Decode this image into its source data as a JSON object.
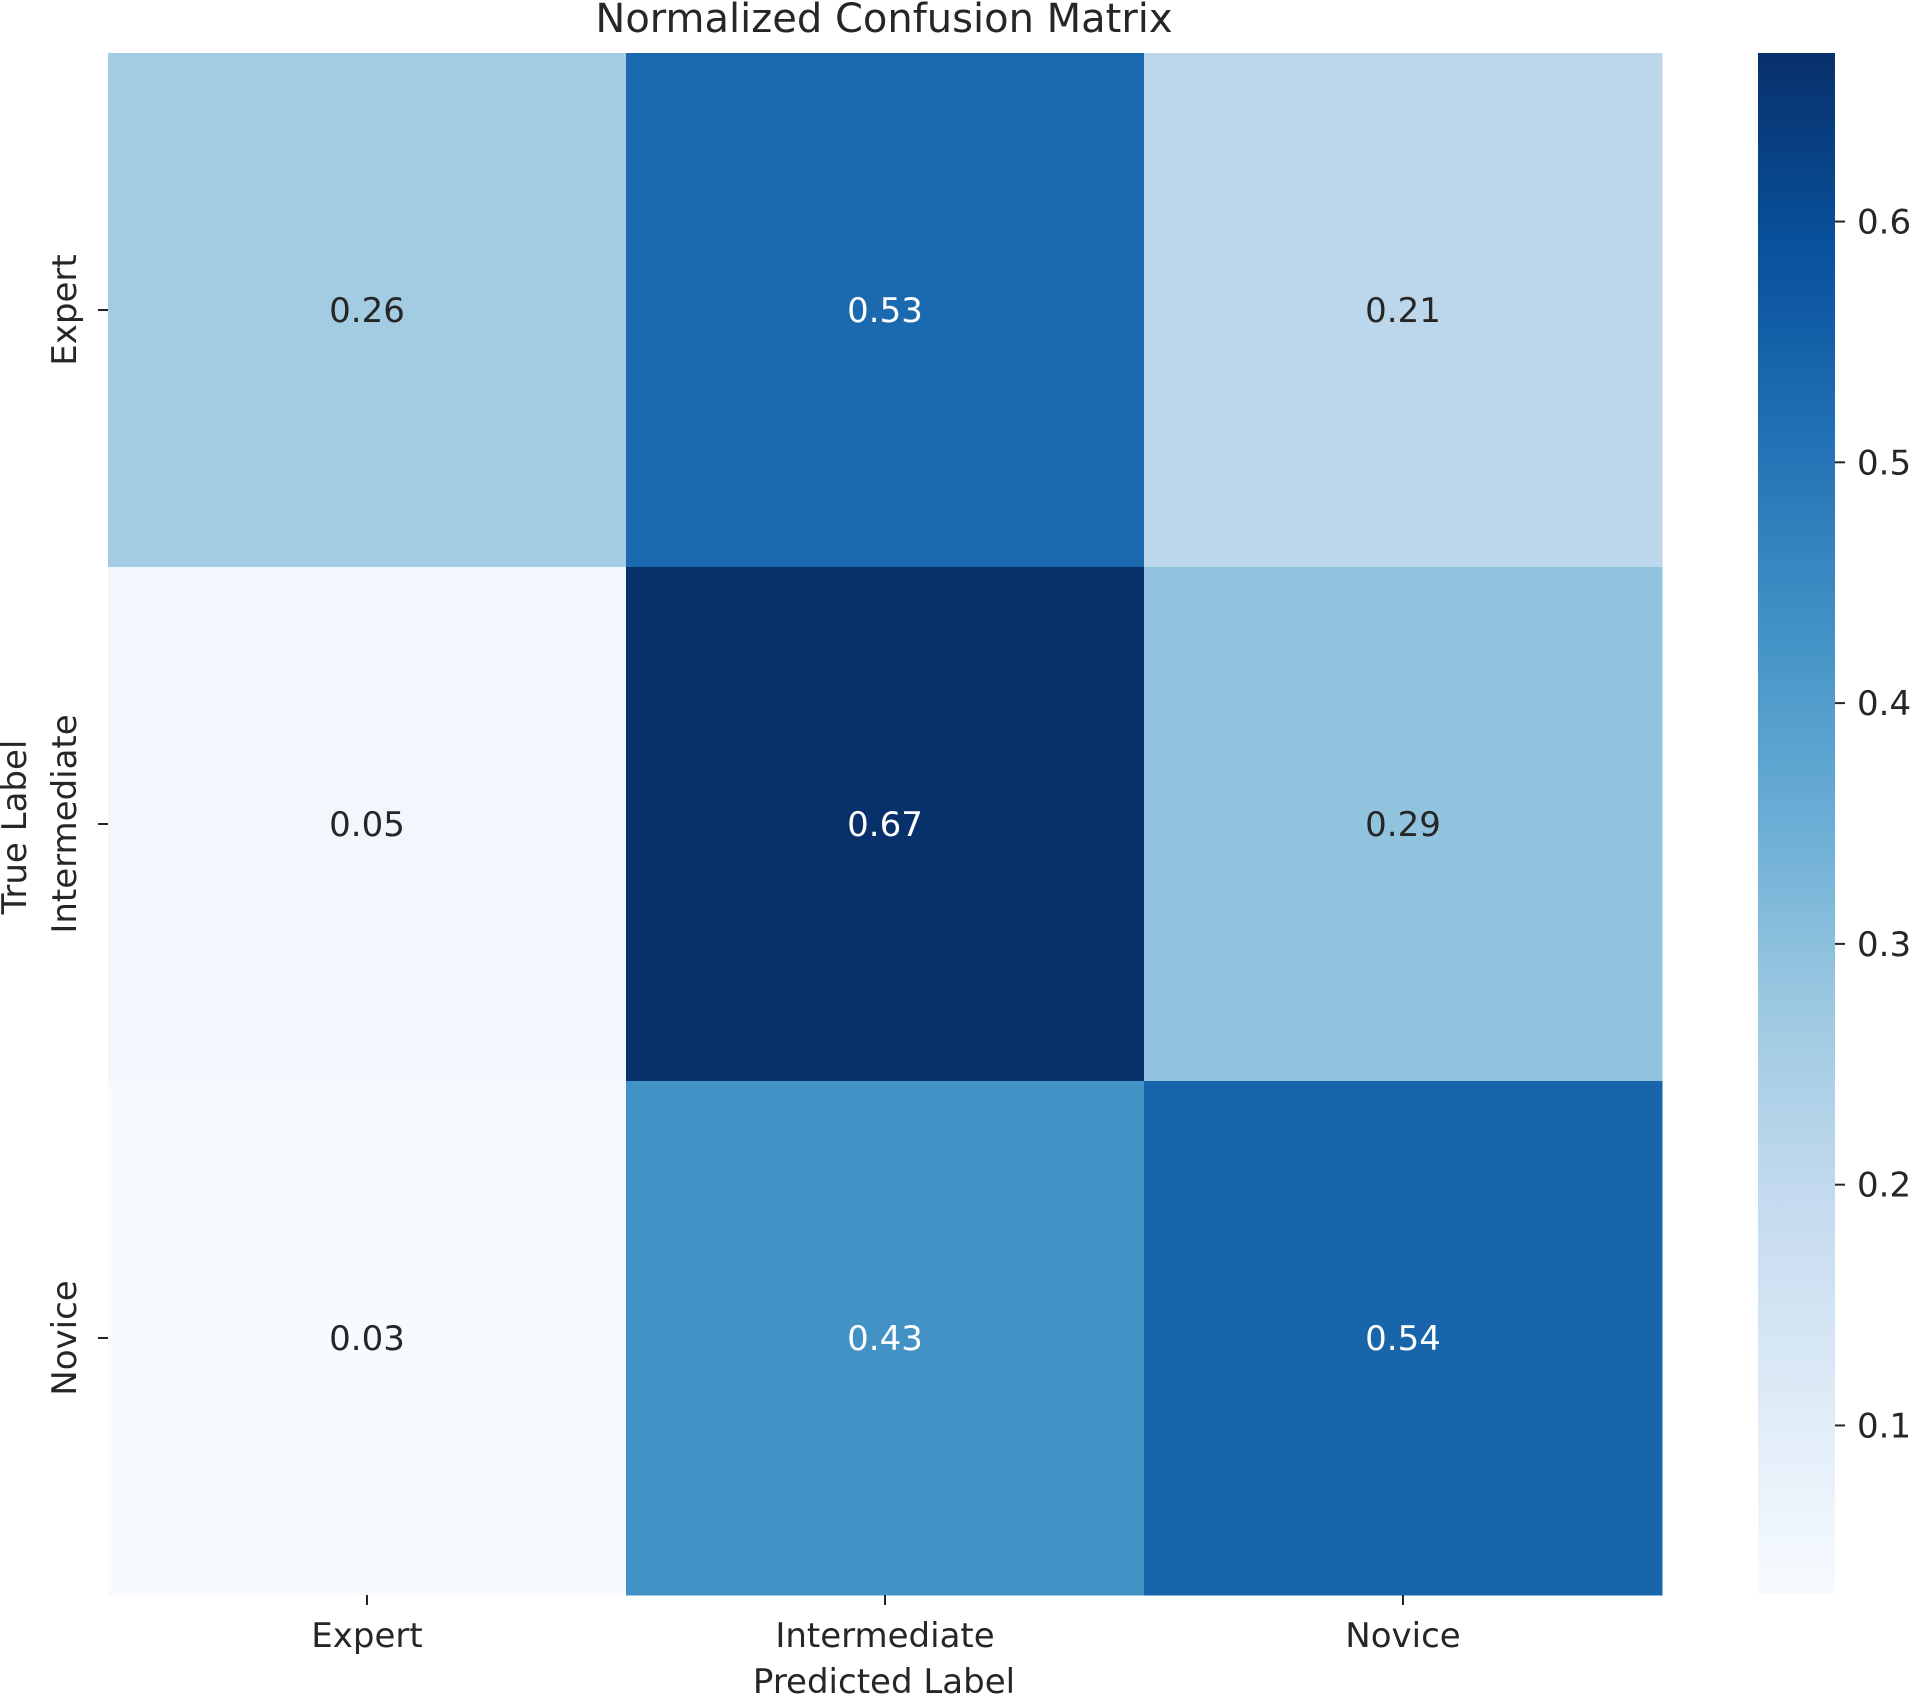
{
  "chart_data": {
    "type": "heatmap",
    "title": "Normalized Confusion Matrix",
    "xlabel": "Predicted Label",
    "ylabel": "True Label",
    "x_categories": [
      "Expert",
      "Intermediate",
      "Novice"
    ],
    "y_categories": [
      "Expert",
      "Intermediate",
      "Novice"
    ],
    "values": [
      [
        0.26,
        0.53,
        0.21
      ],
      [
        0.05,
        0.67,
        0.29
      ],
      [
        0.03,
        0.43,
        0.54
      ]
    ],
    "value_labels": [
      [
        "0.26",
        "0.53",
        "0.21"
      ],
      [
        "0.05",
        "0.67",
        "0.29"
      ],
      [
        "0.03",
        "0.43",
        "0.54"
      ]
    ],
    "colormap": "Blues",
    "colorbar": {
      "vmin": 0.03,
      "vmax": 0.67,
      "ticks": [
        0.1,
        0.2,
        0.3,
        0.4,
        0.5,
        0.6
      ],
      "tick_labels": [
        "0.1",
        "0.2",
        "0.3",
        "0.4",
        "0.5",
        "0.6"
      ]
    },
    "grid": false
  }
}
